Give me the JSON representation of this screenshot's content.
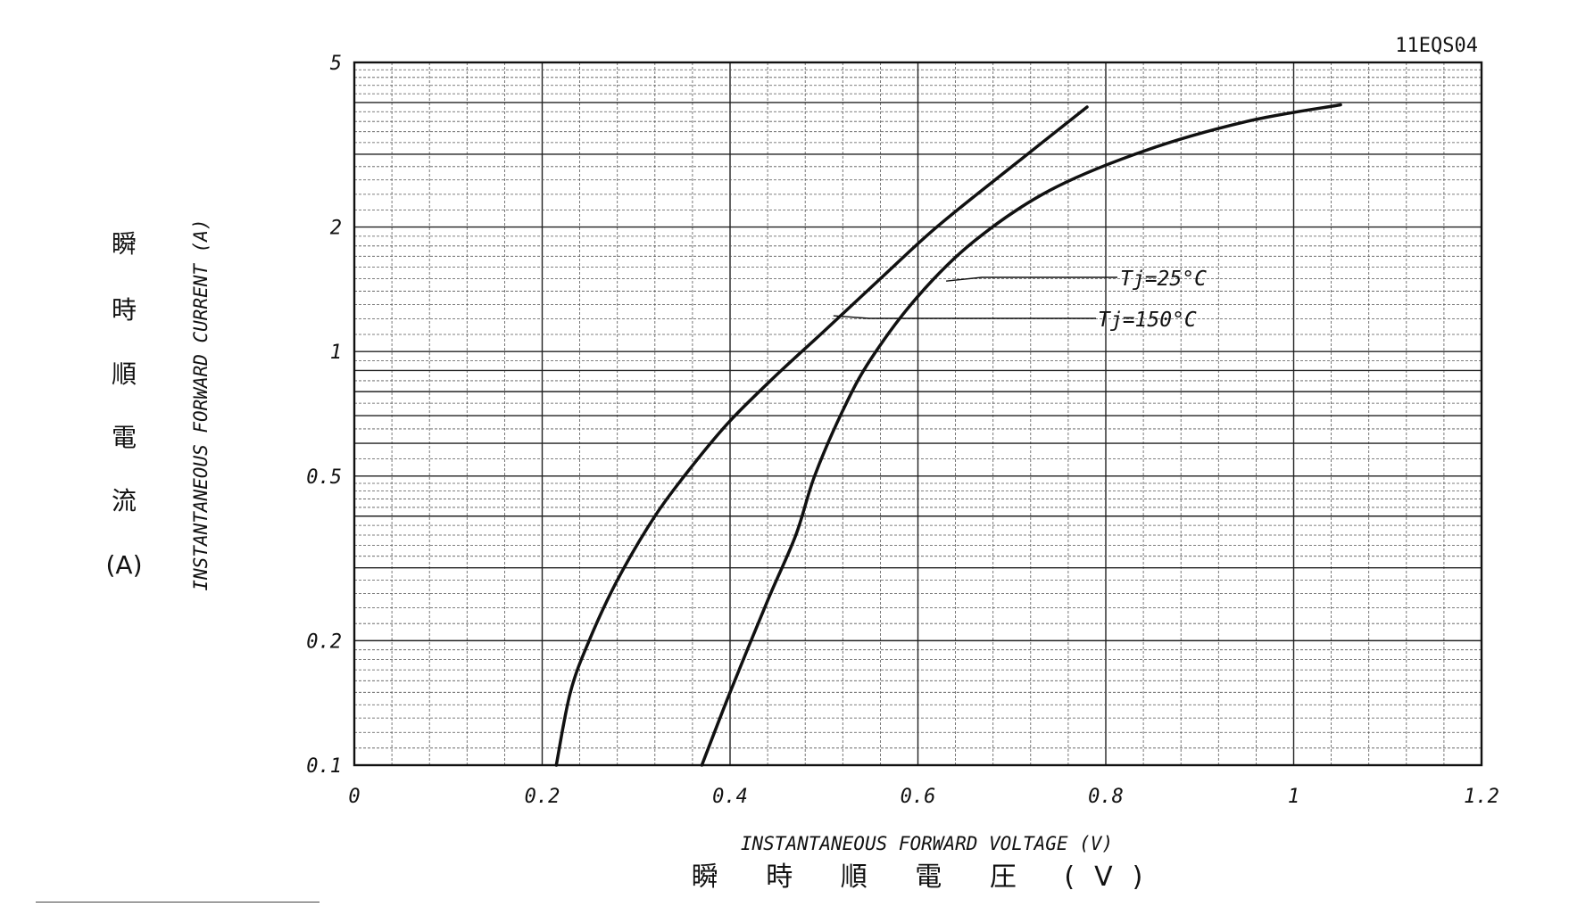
{
  "chart_data": {
    "type": "line",
    "title": "",
    "model_label": "11EQS04",
    "xlabel": "INSTANTANEOUS FORWARD VOLTAGE (V)",
    "xlabel_jp": "瞬 時 順 電 圧  (V)",
    "ylabel": "INSTANTANEOUS FORWARD CURRENT (A)",
    "ylabel_jp": [
      "瞬",
      "時",
      "順",
      "電",
      "流",
      "(A)"
    ],
    "xlim": [
      0,
      1.2
    ],
    "ylim": [
      0.1,
      5
    ],
    "y_scale": "log",
    "grid": true,
    "x_ticks": [
      {
        "value": 0,
        "label": "0"
      },
      {
        "value": 0.2,
        "label": "0.2"
      },
      {
        "value": 0.4,
        "label": "0.4"
      },
      {
        "value": 0.6,
        "label": "0.6"
      },
      {
        "value": 0.8,
        "label": "0.8"
      },
      {
        "value": 1.0,
        "label": "1"
      },
      {
        "value": 1.2,
        "label": "1.2"
      }
    ],
    "y_ticks": [
      {
        "value": 0.1,
        "label": "0.1"
      },
      {
        "value": 0.2,
        "label": "0.2"
      },
      {
        "value": 0.5,
        "label": "0.5"
      },
      {
        "value": 1,
        "label": "1"
      },
      {
        "value": 2,
        "label": "2"
      },
      {
        "value": 5,
        "label": "5"
      }
    ],
    "series": [
      {
        "name": "Tj=150°C",
        "x": [
          0.215,
          0.23,
          0.25,
          0.28,
          0.32,
          0.36,
          0.4,
          0.45,
          0.5,
          0.56,
          0.62,
          0.7,
          0.78
        ],
        "y": [
          0.1,
          0.15,
          0.2,
          0.28,
          0.4,
          0.53,
          0.68,
          0.88,
          1.12,
          1.5,
          2.0,
          2.8,
          3.9
        ]
      },
      {
        "name": "Tj=25°C",
        "x": [
          0.37,
          0.4,
          0.44,
          0.47,
          0.49,
          0.52,
          0.55,
          0.6,
          0.66,
          0.74,
          0.84,
          0.95,
          1.05
        ],
        "y": [
          0.1,
          0.15,
          0.25,
          0.36,
          0.5,
          0.72,
          0.96,
          1.36,
          1.85,
          2.45,
          3.05,
          3.6,
          3.95
        ]
      }
    ],
    "annotations": [
      {
        "label": "Tj=25°C",
        "series": "Tj=25°C",
        "at_x": 0.63,
        "at_y": 1.48
      },
      {
        "label": "Tj=150°C",
        "series": "Tj=150°C",
        "at_x": 0.51,
        "at_y": 1.22
      }
    ]
  }
}
